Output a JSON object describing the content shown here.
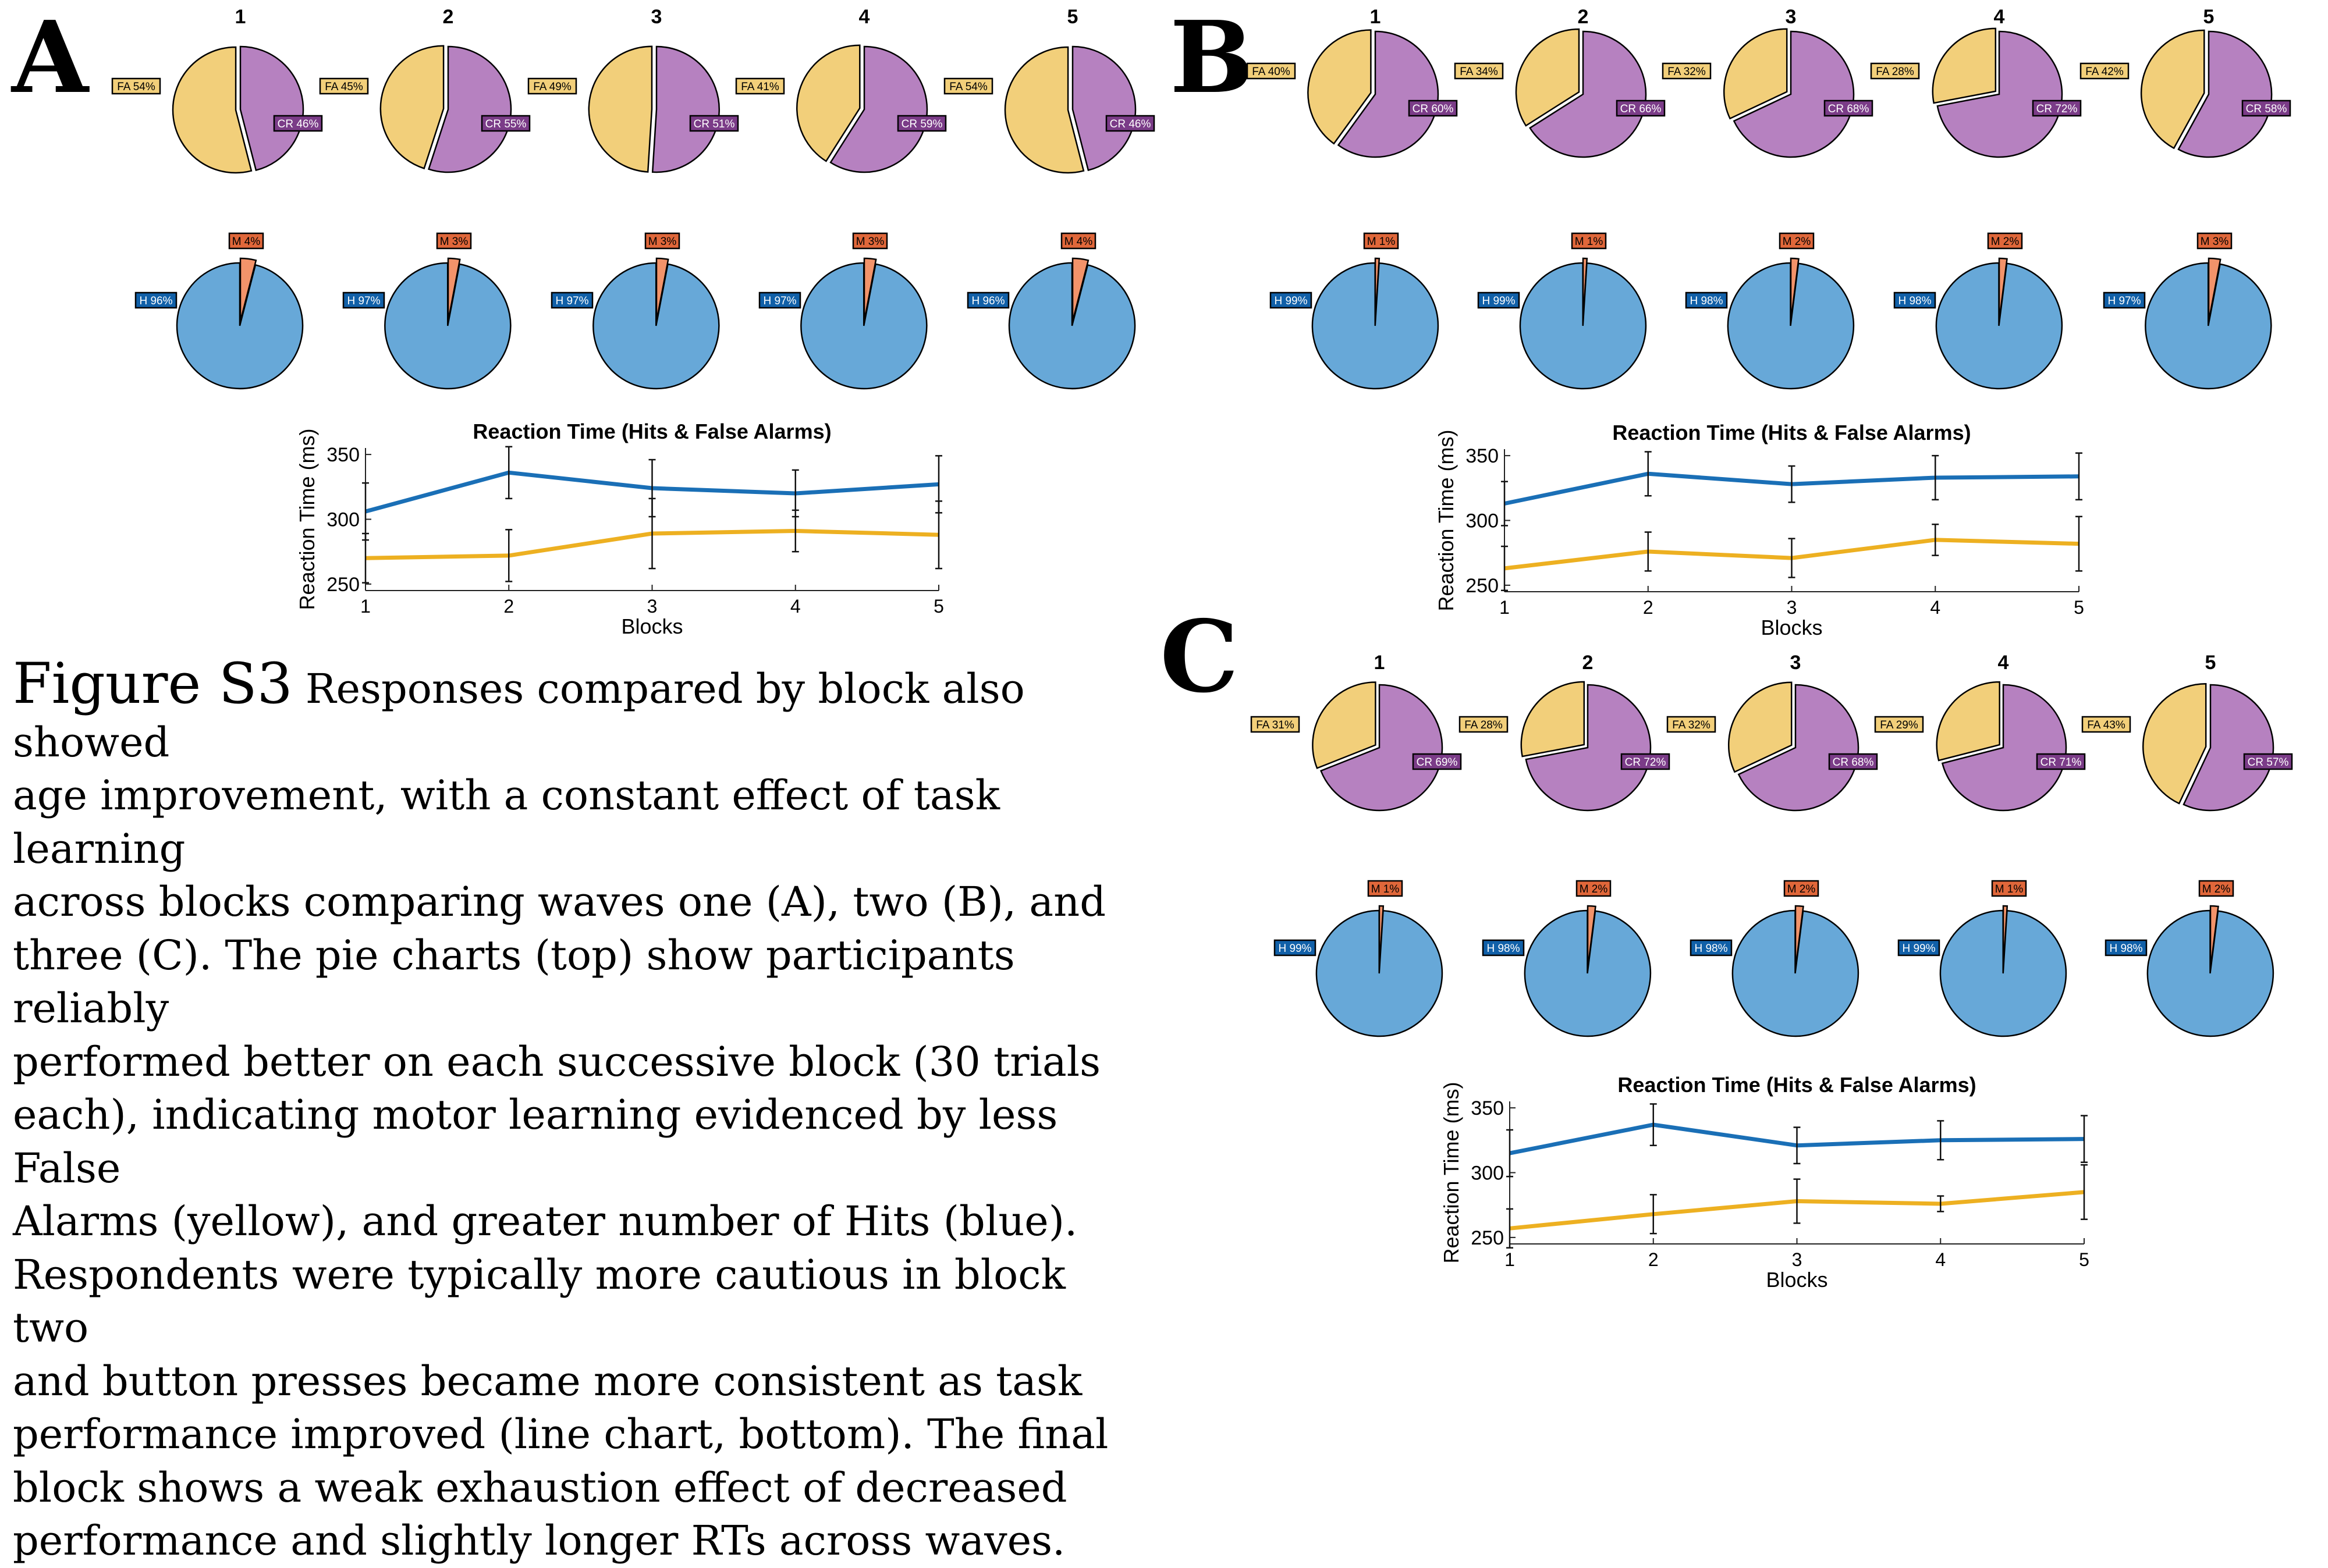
{
  "colors": {
    "fa": "#f2cf7a",
    "cr": "#b681c0",
    "hit": "#67a8d8",
    "miss": "#f2936a",
    "hit_line": "#1a6fb6",
    "fa_line": "#edb021"
  },
  "panels": [
    {
      "letter": "A",
      "block_labels": [
        "1",
        "2",
        "3",
        "4",
        "5"
      ],
      "fa_cr": [
        [
          "FA 54%",
          "CR 46%"
        ],
        [
          "FA 45%",
          "CR 55%"
        ],
        [
          "FA 49%",
          "CR 51%"
        ],
        [
          "FA 41%",
          "CR 59%"
        ],
        [
          "FA 54%",
          "CR 46%"
        ]
      ],
      "hit_miss": [
        [
          "H 96%",
          "M 4%"
        ],
        [
          "H 97%",
          "M 3%"
        ],
        [
          "H 97%",
          "M 3%"
        ],
        [
          "H 97%",
          "M 3%"
        ],
        [
          "H 96%",
          "M 4%"
        ]
      ]
    },
    {
      "letter": "B",
      "block_labels": [
        "1",
        "2",
        "3",
        "4",
        "5"
      ],
      "fa_cr": [
        [
          "FA 40%",
          "CR 60%"
        ],
        [
          "FA 34%",
          "CR 66%"
        ],
        [
          "FA 32%",
          "CR 68%"
        ],
        [
          "FA 28%",
          "CR 72%"
        ],
        [
          "FA 42%",
          "CR 58%"
        ]
      ],
      "hit_miss": [
        [
          "H 99%",
          "M 1%"
        ],
        [
          "H 99%",
          "M 1%"
        ],
        [
          "H 98%",
          "M 2%"
        ],
        [
          "H 98%",
          "M 2%"
        ],
        [
          "H 97%",
          "M 3%"
        ]
      ]
    },
    {
      "letter": "C",
      "block_labels": [
        "1",
        "2",
        "3",
        "4",
        "5"
      ],
      "fa_cr": [
        [
          "FA 31%",
          "CR 69%"
        ],
        [
          "FA 28%",
          "CR 72%"
        ],
        [
          "FA 32%",
          "CR 68%"
        ],
        [
          "FA 29%",
          "CR 71%"
        ],
        [
          "FA 43%",
          "CR 57%"
        ]
      ],
      "hit_miss": [
        [
          "H 99%",
          "M 1%"
        ],
        [
          "H 98%",
          "M 2%"
        ],
        [
          "H 98%",
          "M 2%"
        ],
        [
          "H 99%",
          "M 1%"
        ],
        [
          "H 98%",
          "M 2%"
        ]
      ]
    }
  ],
  "chart_data": [
    {
      "type": "pie",
      "panel": "A",
      "row": "false-alarms-vs-correct-rejections",
      "blocks": [
        {
          "label": "1",
          "slices": [
            {
              "name": "FA",
              "value": 54
            },
            {
              "name": "CR",
              "value": 46
            }
          ]
        },
        {
          "label": "2",
          "slices": [
            {
              "name": "FA",
              "value": 45
            },
            {
              "name": "CR",
              "value": 55
            }
          ]
        },
        {
          "label": "3",
          "slices": [
            {
              "name": "FA",
              "value": 49
            },
            {
              "name": "CR",
              "value": 51
            }
          ]
        },
        {
          "label": "4",
          "slices": [
            {
              "name": "FA",
              "value": 41
            },
            {
              "name": "CR",
              "value": 59
            }
          ]
        },
        {
          "label": "5",
          "slices": [
            {
              "name": "FA",
              "value": 54
            },
            {
              "name": "CR",
              "value": 46
            }
          ]
        }
      ]
    },
    {
      "type": "pie",
      "panel": "A",
      "row": "hits-vs-misses",
      "blocks": [
        {
          "label": "1",
          "slices": [
            {
              "name": "H",
              "value": 96
            },
            {
              "name": "M",
              "value": 4
            }
          ]
        },
        {
          "label": "2",
          "slices": [
            {
              "name": "H",
              "value": 97
            },
            {
              "name": "M",
              "value": 3
            }
          ]
        },
        {
          "label": "3",
          "slices": [
            {
              "name": "H",
              "value": 97
            },
            {
              "name": "M",
              "value": 3
            }
          ]
        },
        {
          "label": "4",
          "slices": [
            {
              "name": "H",
              "value": 97
            },
            {
              "name": "M",
              "value": 3
            }
          ]
        },
        {
          "label": "5",
          "slices": [
            {
              "name": "H",
              "value": 96
            },
            {
              "name": "M",
              "value": 4
            }
          ]
        }
      ]
    },
    {
      "type": "line",
      "panel": "A",
      "title": "Reaction Time (Hits & False Alarms)",
      "xlabel": "Blocks",
      "ylabel": "Reaction Time (ms)",
      "x": [
        1,
        2,
        3,
        4,
        5
      ],
      "xlim": [
        1,
        5
      ],
      "ylim": [
        245,
        355
      ],
      "yticks": [
        250,
        300,
        350
      ],
      "series": [
        {
          "values": [
            306,
            336,
            324,
            320,
            327
          ],
          "errors": [
            22,
            20,
            22,
            18,
            22
          ]
        },
        {
          "values": [
            270,
            272,
            289,
            291,
            288
          ],
          "errors": [
            19,
            20,
            27,
            16,
            26
          ]
        }
      ]
    },
    {
      "type": "pie",
      "panel": "B",
      "row": "false-alarms-vs-correct-rejections",
      "blocks": [
        {
          "label": "1",
          "slices": [
            {
              "name": "FA",
              "value": 40
            },
            {
              "name": "CR",
              "value": 60
            }
          ]
        },
        {
          "label": "2",
          "slices": [
            {
              "name": "FA",
              "value": 34
            },
            {
              "name": "CR",
              "value": 66
            }
          ]
        },
        {
          "label": "3",
          "slices": [
            {
              "name": "FA",
              "value": 32
            },
            {
              "name": "CR",
              "value": 68
            }
          ]
        },
        {
          "label": "4",
          "slices": [
            {
              "name": "FA",
              "value": 28
            },
            {
              "name": "CR",
              "value": 72
            }
          ]
        },
        {
          "label": "5",
          "slices": [
            {
              "name": "FA",
              "value": 42
            },
            {
              "name": "CR",
              "value": 58
            }
          ]
        }
      ]
    },
    {
      "type": "pie",
      "panel": "B",
      "row": "hits-vs-misses",
      "blocks": [
        {
          "label": "1",
          "slices": [
            {
              "name": "H",
              "value": 99
            },
            {
              "name": "M",
              "value": 1
            }
          ]
        },
        {
          "label": "2",
          "slices": [
            {
              "name": "H",
              "value": 99
            },
            {
              "name": "M",
              "value": 1
            }
          ]
        },
        {
          "label": "3",
          "slices": [
            {
              "name": "H",
              "value": 98
            },
            {
              "name": "M",
              "value": 2
            }
          ]
        },
        {
          "label": "4",
          "slices": [
            {
              "name": "H",
              "value": 98
            },
            {
              "name": "M",
              "value": 2
            }
          ]
        },
        {
          "label": "5",
          "slices": [
            {
              "name": "H",
              "value": 97
            },
            {
              "name": "M",
              "value": 3
            }
          ]
        }
      ]
    },
    {
      "type": "line",
      "panel": "B",
      "title": "Reaction Time (Hits & False Alarms)",
      "xlabel": "Blocks",
      "ylabel": "Reaction Time (ms)",
      "x": [
        1,
        2,
        3,
        4,
        5
      ],
      "xlim": [
        1,
        5
      ],
      "ylim": [
        245,
        355
      ],
      "yticks": [
        250,
        300,
        350
      ],
      "series": [
        {
          "values": [
            313,
            336,
            328,
            333,
            334
          ],
          "errors": [
            17,
            17,
            14,
            17,
            18
          ]
        },
        {
          "values": [
            263,
            276,
            271,
            285,
            282
          ],
          "errors": [
            17,
            15,
            15,
            12,
            21
          ]
        }
      ]
    },
    {
      "type": "pie",
      "panel": "C",
      "row": "false-alarms-vs-correct-rejections",
      "blocks": [
        {
          "label": "1",
          "slices": [
            {
              "name": "FA",
              "value": 31
            },
            {
              "name": "CR",
              "value": 69
            }
          ]
        },
        {
          "label": "2",
          "slices": [
            {
              "name": "FA",
              "value": 28
            },
            {
              "name": "CR",
              "value": 72
            }
          ]
        },
        {
          "label": "3",
          "slices": [
            {
              "name": "FA",
              "value": 32
            },
            {
              "name": "CR",
              "value": 68
            }
          ]
        },
        {
          "label": "4",
          "slices": [
            {
              "name": "FA",
              "value": 29
            },
            {
              "name": "CR",
              "value": 71
            }
          ]
        },
        {
          "label": "5",
          "slices": [
            {
              "name": "FA",
              "value": 43
            },
            {
              "name": "CR",
              "value": 57
            }
          ]
        }
      ]
    },
    {
      "type": "pie",
      "panel": "C",
      "row": "hits-vs-misses",
      "blocks": [
        {
          "label": "1",
          "slices": [
            {
              "name": "H",
              "value": 99
            },
            {
              "name": "M",
              "value": 1
            }
          ]
        },
        {
          "label": "2",
          "slices": [
            {
              "name": "H",
              "value": 98
            },
            {
              "name": "M",
              "value": 2
            }
          ]
        },
        {
          "label": "3",
          "slices": [
            {
              "name": "H",
              "value": 98
            },
            {
              "name": "M",
              "value": 2
            }
          ]
        },
        {
          "label": "4",
          "slices": [
            {
              "name": "H",
              "value": 99
            },
            {
              "name": "M",
              "value": 1
            }
          ]
        },
        {
          "label": "5",
          "slices": [
            {
              "name": "H",
              "value": 98
            },
            {
              "name": "M",
              "value": 2
            }
          ]
        }
      ]
    },
    {
      "type": "line",
      "panel": "C",
      "title": "Reaction Time (Hits & False Alarms)",
      "xlabel": "Blocks",
      "ylabel": "Reaction Time (ms)",
      "x": [
        1,
        2,
        3,
        4,
        5
      ],
      "xlim": [
        1,
        5
      ],
      "ylim": [
        245,
        355
      ],
      "yticks": [
        250,
        300,
        350
      ],
      "series": [
        {
          "values": [
            315,
            337,
            321,
            325,
            326
          ],
          "errors": [
            18,
            16,
            14,
            15,
            18
          ]
        },
        {
          "values": [
            257,
            268,
            278,
            276,
            285
          ],
          "errors": [
            15,
            15,
            17,
            6,
            21
          ]
        }
      ]
    }
  ],
  "caption": {
    "label": "Figure S3",
    "lines": [
      "Responses compared by block also showed",
      "age improvement, with a constant effect of task learning",
      "across blocks comparing waves one (A), two (B), and",
      "three (C). The pie charts (top) show participants reliably",
      "performed better on each successive block (30 trials",
      "each), indicating motor learning evidenced by less False",
      "Alarms (yellow), and greater number of Hits (blue).",
      "Respondents were typically more cautious in block two",
      "and button presses became more consistent as task",
      "performance improved (line chart, bottom). The final",
      "block shows a weak exhaustion effect of decreased",
      "performance and slightly longer RTs across waves."
    ]
  }
}
